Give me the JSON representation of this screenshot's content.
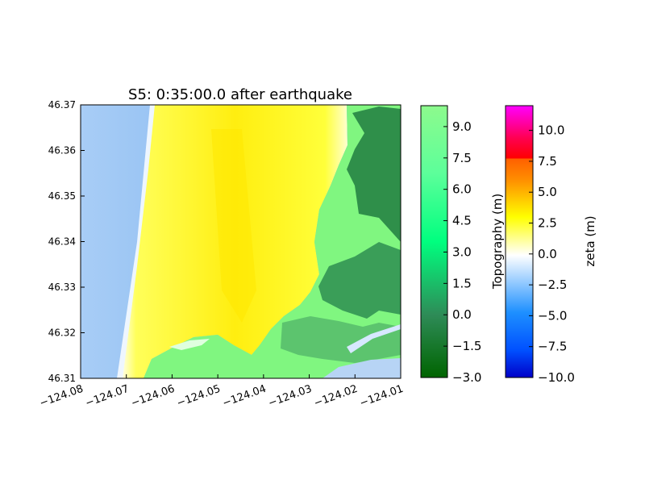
{
  "chart_data": {
    "type": "heatmap",
    "title": "S5: 0:35:00.0 after earthquake",
    "xlim": [
      -124.08,
      -124.01
    ],
    "ylim": [
      46.31,
      46.37
    ],
    "x_ticks": [
      -124.08,
      -124.07,
      -124.06,
      -124.05,
      -124.04,
      -124.03,
      -124.02,
      -124.01
    ],
    "x_tick_labels": [
      "−124.08",
      "−124.07",
      "−124.06",
      "−124.05",
      "−124.04",
      "−124.03",
      "−124.02",
      "−124.01"
    ],
    "y_ticks": [
      46.31,
      46.32,
      46.33,
      46.34,
      46.35,
      46.36,
      46.37
    ],
    "y_tick_labels": [
      "46.31",
      "46.32",
      "46.33",
      "46.34",
      "46.35",
      "46.36",
      "46.37"
    ],
    "grid": false,
    "colorbars": [
      {
        "label": "Topography (m)",
        "range": [
          -3.0,
          10.0
        ],
        "ticks": [
          -3.0,
          -1.5,
          0.0,
          1.5,
          3.0,
          4.5,
          6.0,
          7.5,
          9.0
        ],
        "tick_labels": [
          "−3.0",
          "−1.5",
          "0.0",
          "1.5",
          "3.0",
          "4.5",
          "6.0",
          "7.5",
          "9.0"
        ],
        "colors": [
          "#006400",
          "#2e8b57",
          "#00ff7f",
          "#7fff7f",
          "#8dfa8d"
        ]
      },
      {
        "label": "zeta (m)",
        "range": [
          -10.0,
          12.0
        ],
        "ticks": [
          -10.0,
          -7.5,
          -5.0,
          -2.5,
          0.0,
          2.5,
          5.0,
          7.5,
          10.0
        ],
        "tick_labels": [
          "−10.0",
          "−7.5",
          "−5.0",
          "−2.5",
          "0.0",
          "2.5",
          "5.0",
          "7.5",
          "10.0"
        ],
        "colors": [
          "#0000c8",
          "#1e90ff",
          "#ffffff",
          "#ffff00",
          "#ff8c00",
          "#ff0000",
          "#ff00ff"
        ]
      }
    ],
    "regions": {
      "ocean_color": "#8cbcf2",
      "inundation_color": "#ffff1e",
      "land_color": "#80f680",
      "dark_land_color": "#3a9e58"
    }
  }
}
